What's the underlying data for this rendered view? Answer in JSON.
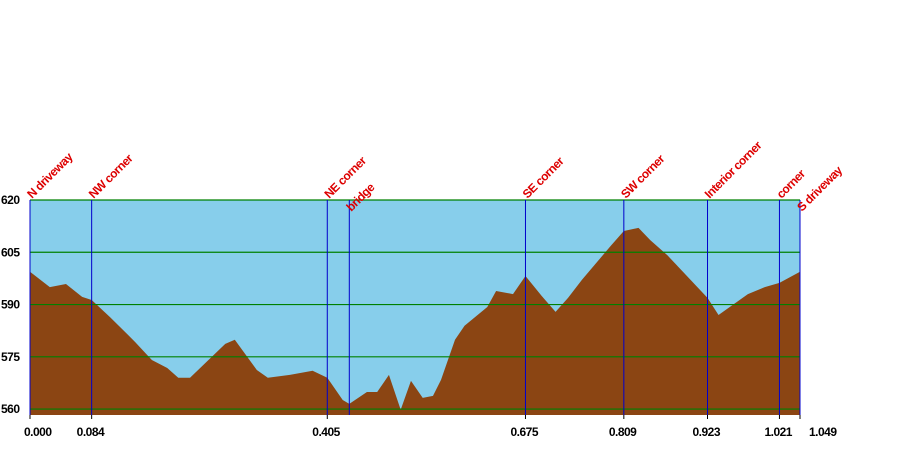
{
  "chart_data": {
    "type": "area",
    "x": [
      0,
      0.027,
      0.049,
      0.071,
      0.084,
      0.109,
      0.143,
      0.166,
      0.187,
      0.202,
      0.218,
      0.266,
      0.279,
      0.309,
      0.324,
      0.354,
      0.385,
      0.405,
      0.426,
      0.435,
      0.459,
      0.473,
      0.489,
      0.505,
      0.519,
      0.535,
      0.549,
      0.56,
      0.579,
      0.592,
      0.623,
      0.635,
      0.658,
      0.675,
      0.697,
      0.716,
      0.733,
      0.752,
      0.791,
      0.809,
      0.829,
      0.845,
      0.868,
      0.923,
      0.938,
      0.978,
      1.001,
      1.021,
      1.049
    ],
    "series": [
      {
        "color": "#8b4513",
        "values": [
          599.4,
          595.0,
          595.9,
          592.2,
          591.3,
          586.4,
          579.3,
          574.1,
          571.8,
          569.0,
          569.0,
          578.7,
          579.9,
          571.2,
          569.0,
          569.8,
          571.0,
          569.0,
          562.6,
          561.5,
          564.9,
          564.9,
          569.8,
          559.8,
          568.1,
          563.2,
          563.8,
          568.4,
          579.9,
          583.9,
          589.3,
          593.9,
          593.0,
          598.2,
          592.5,
          587.9,
          591.9,
          597.1,
          606.8,
          611.1,
          612.0,
          608.5,
          604.2,
          591.9,
          587.0,
          593.0,
          595.0,
          596.2,
          599.4
        ]
      }
    ],
    "background": "#87ceeb",
    "xlim": [
      0,
      1.049
    ],
    "ylim": [
      558.3,
      620
    ],
    "xticks": [
      {
        "value": 0,
        "label": "0.000"
      },
      0.084,
      0.405,
      0.675,
      0.809,
      0.923,
      1.021,
      1.049
    ],
    "yticks": [
      560,
      575,
      590,
      605,
      620
    ],
    "grid": true,
    "grid_color": "#008000",
    "markers": [
      {
        "name": "N driveway",
        "x": 0
      },
      {
        "name": "NW corner",
        "x": 0.084
      },
      {
        "name": "NE corner",
        "x": 0.405
      },
      {
        "name": "bridge",
        "x": 0.435
      },
      {
        "name": "SE corner",
        "x": 0.675
      },
      {
        "name": "SW corner",
        "x": 0.809
      },
      {
        "name": "Interior corner",
        "x": 0.923
      },
      {
        "name": "corner",
        "x": 1.021
      },
      {
        "name": "S driveway",
        "x": 1.049
      }
    ],
    "marker_color": "#0000cc",
    "marker_label_color": "#dd0000"
  }
}
